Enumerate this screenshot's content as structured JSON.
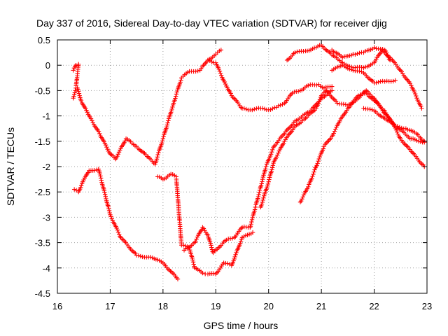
{
  "chart_data": {
    "type": "scatter",
    "title": "Day 337 of 2016, Sidereal Day-to-day VTEC variation (SDTVAR) for receiver djig",
    "xlabel": "GPS time / hours",
    "ylabel": "SDTVAR / TECUs",
    "xlim": [
      16,
      23
    ],
    "ylim": [
      -4.5,
      0.5
    ],
    "x_ticks": [
      "16",
      "17",
      "18",
      "19",
      "20",
      "21",
      "22",
      "23"
    ],
    "y_ticks": [
      "0.5",
      "0",
      "-0.5",
      "-1",
      "-1.5",
      "-2",
      "-2.5",
      "-3",
      "-3.5",
      "-4",
      "-4.5"
    ],
    "grid": true,
    "marker": "plus",
    "color": "#ff0000",
    "series": [
      {
        "x": [
          16.32,
          16.4,
          16.48,
          16.6,
          16.78,
          17.0,
          17.2,
          17.5,
          17.8,
          18.0,
          18.28
        ],
        "y": [
          -2.45,
          -2.5,
          -2.3,
          -2.08,
          -2.05,
          -2.95,
          -3.4,
          -3.75,
          -3.8,
          -3.9,
          -4.22
        ]
      },
      {
        "x": [
          16.38,
          16.45,
          16.6,
          16.8,
          17.0,
          17.1,
          17.3,
          17.5,
          17.7,
          17.85,
          18.0,
          18.2,
          18.35,
          18.5,
          18.7,
          18.85,
          19.0,
          19.1
        ],
        "y": [
          -0.45,
          -0.7,
          -1.0,
          -1.35,
          -1.75,
          -1.85,
          -1.45,
          -1.6,
          -1.8,
          -1.95,
          -1.45,
          -0.75,
          -0.25,
          -0.12,
          -0.1,
          0.1,
          0.22,
          0.3
        ]
      },
      {
        "x": [
          18.85,
          19.0,
          19.15,
          19.3,
          19.5,
          19.65,
          19.85,
          20.0,
          20.15,
          20.3,
          20.45,
          20.6,
          20.75,
          20.95,
          21.05,
          21.2
        ],
        "y": [
          0.1,
          0.05,
          -0.3,
          -0.6,
          -0.85,
          -0.88,
          -0.85,
          -0.88,
          -0.83,
          -0.75,
          -0.55,
          -0.5,
          -0.4,
          -0.38,
          -0.45,
          -0.42
        ]
      },
      {
        "x": [
          20.35,
          20.5,
          20.7,
          20.9,
          21.0,
          21.2,
          21.4,
          21.6,
          21.8,
          22.0,
          22.15,
          22.3,
          22.5,
          22.7,
          22.9
        ],
        "y": [
          0.1,
          0.25,
          0.28,
          0.35,
          0.4,
          0.2,
          0.05,
          -0.05,
          -0.05,
          0.05,
          0.3,
          0.15,
          -0.1,
          -0.4,
          -0.85
        ]
      },
      {
        "x": [
          21.2,
          21.4,
          21.6,
          21.8,
          22.0,
          22.2,
          22.3
        ],
        "y": [
          0.3,
          0.15,
          0.22,
          0.25,
          0.35,
          0.3,
          0.1
        ]
      },
      {
        "x": [
          21.2,
          21.4,
          21.6,
          21.8,
          22.0,
          22.2,
          22.4
        ],
        "y": [
          -0.1,
          0.0,
          -0.1,
          -0.15,
          -0.35,
          -0.32,
          -0.3
        ]
      },
      {
        "x": [
          17.9,
          18.0,
          18.15,
          18.25,
          18.35,
          18.5,
          18.6,
          18.75,
          18.85,
          19.0,
          19.15,
          19.3,
          19.5,
          19.6,
          19.7
        ],
        "y": [
          -2.2,
          -2.25,
          -2.15,
          -2.2,
          -3.55,
          -3.6,
          -4.0,
          -4.1,
          -4.12,
          -4.12,
          -3.9,
          -3.95,
          -3.4,
          -3.35,
          -3.3
        ]
      },
      {
        "x": [
          18.4,
          18.6,
          18.75,
          18.85,
          18.95,
          19.05,
          19.2,
          19.35,
          19.5,
          19.65,
          19.75,
          19.85,
          19.95,
          20.1,
          20.3,
          20.5,
          20.8,
          21.0,
          21.2
        ],
        "y": [
          -3.65,
          -3.5,
          -3.2,
          -3.35,
          -3.7,
          -3.6,
          -3.45,
          -3.4,
          -3.2,
          -3.2,
          -2.8,
          -2.4,
          -2.0,
          -1.6,
          -1.35,
          -1.1,
          -0.9,
          -0.65,
          -0.5
        ]
      },
      {
        "x": [
          19.85,
          20.0,
          20.1,
          20.3,
          20.5,
          20.7,
          20.9,
          21.0,
          21.1,
          21.3,
          21.5,
          21.7,
          21.85,
          22.0,
          22.2,
          22.4,
          22.7,
          22.95
        ],
        "y": [
          -2.8,
          -2.3,
          -1.9,
          -1.5,
          -1.2,
          -1.05,
          -0.85,
          -0.6,
          -0.5,
          -0.75,
          -0.8,
          -0.65,
          -0.5,
          -0.65,
          -0.95,
          -1.2,
          -1.45,
          -1.52
        ]
      },
      {
        "x": [
          20.6,
          20.75,
          20.9,
          21.05,
          21.2,
          21.35,
          21.5,
          21.7,
          21.85,
          22.0,
          22.2,
          22.35,
          22.5,
          22.7,
          22.95
        ],
        "y": [
          -2.7,
          -2.4,
          -2.0,
          -1.6,
          -1.4,
          -1.1,
          -0.85,
          -0.6,
          -0.55,
          -0.7,
          -0.9,
          -1.15,
          -1.45,
          -1.7,
          -2.0
        ]
      },
      {
        "x": [
          21.8,
          22.0,
          22.2,
          22.4,
          22.6,
          22.8,
          22.95
        ],
        "y": [
          -0.85,
          -0.9,
          -1.05,
          -1.2,
          -1.25,
          -1.35,
          -1.5
        ]
      },
      {
        "x": [
          16.3,
          16.35,
          16.4,
          16.35,
          16.3
        ],
        "y": [
          -0.1,
          0.0,
          0.02,
          -0.45,
          -0.65
        ]
      }
    ]
  }
}
